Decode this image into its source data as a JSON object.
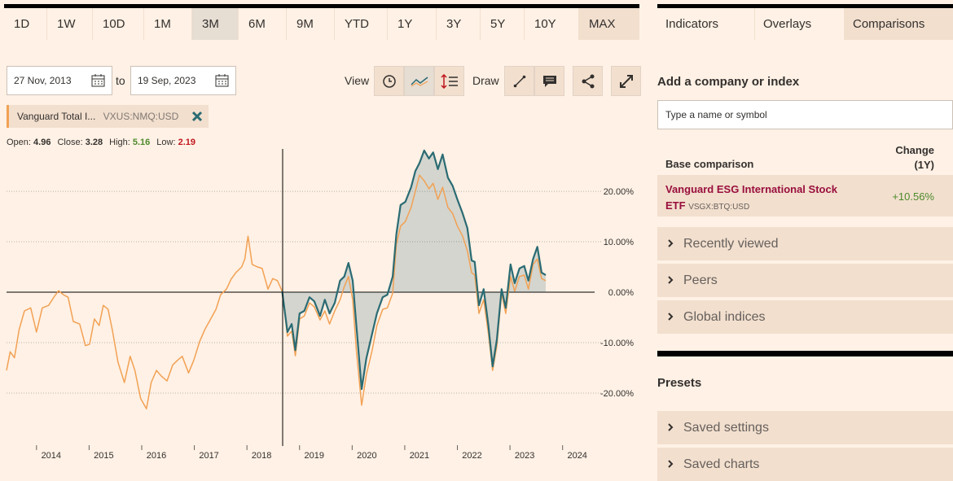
{
  "toolbar": {
    "ranges": [
      {
        "label": "1D"
      },
      {
        "label": "1W"
      },
      {
        "label": "10D"
      },
      {
        "label": "1M"
      },
      {
        "label": "3M",
        "active": true
      },
      {
        "label": "6M"
      },
      {
        "label": "9M"
      },
      {
        "label": "YTD"
      },
      {
        "label": "1Y"
      },
      {
        "label": "3Y"
      },
      {
        "label": "5Y"
      },
      {
        "label": "10Y"
      },
      {
        "label": "MAX"
      }
    ],
    "from": "27 Nov, 2013",
    "to_label": "to",
    "to": "19 Sep, 2023",
    "view_label": "View",
    "draw_label": "Draw"
  },
  "ohlc": [
    {
      "label": "Open:",
      "value": 4.96,
      "color": "#33302e"
    },
    {
      "label": "Close:",
      "value": 3.28,
      "color": "#33302e"
    },
    {
      "label": "High:",
      "value": 5.16,
      "color": "#4d8a2c"
    },
    {
      "label": "Low:",
      "value": 2.19,
      "color": "#c0161e"
    }
  ],
  "chart_data": {
    "type": "line",
    "xlim": [
      2013.43,
      2025.46
    ],
    "xticks": [
      2014,
      2015,
      2016,
      2017,
      2018,
      2019,
      2020,
      2021,
      2022,
      2023,
      2024
    ],
    "ylim": [
      -30,
      28.4
    ],
    "yticks": [
      {
        "value": -20,
        "label": "-20.00%"
      },
      {
        "value": -10,
        "label": "-10.00%"
      },
      {
        "value": 0,
        "label": "0.00%"
      },
      {
        "value": 10,
        "label": "10.00%"
      },
      {
        "value": 20,
        "label": "20.00%"
      }
    ],
    "grid": true,
    "series": [
      {
        "name": "Vanguard Total I...",
        "symbol": "VXUS:NMQ:USD",
        "color": "#f2a154",
        "x": [
          2013.43,
          2013.5,
          2013.58,
          2013.67,
          2013.77,
          2013.89,
          2014.0,
          2014.11,
          2014.23,
          2014.33,
          2014.42,
          2014.51,
          2014.6,
          2014.7,
          2014.82,
          2014.93,
          2015.01,
          2015.1,
          2015.19,
          2015.27,
          2015.36,
          2015.44,
          2015.55,
          2015.67,
          2015.78,
          2015.87,
          2015.98,
          2016.09,
          2016.18,
          2016.28,
          2016.37,
          2016.48,
          2016.59,
          2016.68,
          2016.77,
          2016.89,
          2016.99,
          2017.1,
          2017.2,
          2017.3,
          2017.41,
          2017.5,
          2017.61,
          2017.7,
          2017.79,
          2017.9,
          2017.96,
          2018.02,
          2018.1,
          2018.2,
          2018.29,
          2018.4,
          2018.49,
          2018.58,
          2018.67,
          2018.77,
          2018.85,
          2018.92,
          2019.0,
          2019.09,
          2019.19,
          2019.28,
          2019.39,
          2019.48,
          2019.57,
          2019.67,
          2019.77,
          2019.85,
          2019.93,
          2020.01,
          2020.08,
          2020.18,
          2020.27,
          2020.38,
          2020.47,
          2020.58,
          2020.67,
          2020.77,
          2020.84,
          2020.92,
          2021.01,
          2021.12,
          2021.2,
          2021.28,
          2021.37,
          2021.46,
          2021.54,
          2021.63,
          2021.72,
          2021.82,
          2021.91,
          2022.0,
          2022.1,
          2022.19,
          2022.27,
          2022.33,
          2022.41,
          2022.5,
          2022.59,
          2022.67,
          2022.75,
          2022.84,
          2022.92,
          2023.01,
          2023.09,
          2023.18,
          2023.27,
          2023.35,
          2023.44,
          2023.52,
          2023.6,
          2023.68
        ],
        "values": [
          -15.5,
          -11.8,
          -13,
          -7.4,
          -3.7,
          -3.1,
          -7.9,
          -3.1,
          -2.6,
          -1,
          0.3,
          -0.5,
          -1,
          -5.8,
          -6.3,
          -10.6,
          -10.3,
          -5.3,
          -6.6,
          -2.6,
          -3.4,
          -7.4,
          -13.9,
          -17.9,
          -12.7,
          -15.5,
          -21.1,
          -23.1,
          -17.9,
          -15.5,
          -16.6,
          -17.6,
          -14.4,
          -13.5,
          -12.7,
          -16,
          -13.5,
          -9.8,
          -7.4,
          -5.5,
          -3.4,
          -0.5,
          0.6,
          2.6,
          3.9,
          5,
          6.6,
          11.1,
          5.5,
          5,
          4.7,
          0.6,
          2.7,
          2.3,
          0.2,
          -8.7,
          -7.7,
          -12.6,
          -5.3,
          -4.7,
          -2.1,
          -2.9,
          -5.5,
          -3.7,
          -6.3,
          -3.7,
          -1.5,
          1.1,
          3.1,
          -1.5,
          -11.5,
          -22.4,
          -16.3,
          -11.5,
          -6.6,
          -3.4,
          -3.1,
          -0.2,
          9.5,
          13.1,
          14,
          16.8,
          20,
          23.2,
          22.1,
          20.5,
          21.6,
          18.4,
          20.8,
          16.8,
          15.6,
          13.1,
          11.1,
          8.2,
          3.9,
          3.4,
          -4.2,
          -1.5,
          -8.2,
          -15.5,
          -10.6,
          -0.2,
          -4.2,
          3.1,
          0.2,
          3.1,
          3.4,
          0.6,
          5.5,
          6.6,
          2.7,
          2.3
        ]
      },
      {
        "name": "Vanguard ESG International Stock ETF",
        "symbol": "VSGX:BTQ:USD",
        "color": "#2a6b73",
        "area": true,
        "x": [
          2018.67,
          2018.77,
          2018.85,
          2018.92,
          2019.0,
          2019.09,
          2019.19,
          2019.28,
          2019.39,
          2019.48,
          2019.57,
          2019.67,
          2019.77,
          2019.85,
          2019.93,
          2020.01,
          2020.08,
          2020.18,
          2020.27,
          2020.38,
          2020.47,
          2020.58,
          2020.67,
          2020.77,
          2020.84,
          2020.92,
          2021.01,
          2021.12,
          2021.2,
          2021.28,
          2021.37,
          2021.46,
          2021.54,
          2021.63,
          2021.72,
          2021.82,
          2021.91,
          2022.0,
          2022.1,
          2022.19,
          2022.27,
          2022.33,
          2022.41,
          2022.5,
          2022.59,
          2022.67,
          2022.75,
          2022.84,
          2022.92,
          2023.01,
          2023.09,
          2023.18,
          2023.27,
          2023.35,
          2023.44,
          2023.52,
          2023.6,
          2023.68
        ],
        "values": [
          0.2,
          -7.9,
          -6.3,
          -11.5,
          -4.2,
          -3.7,
          -1,
          -1.8,
          -4.7,
          -1.5,
          -4.2,
          -2.1,
          2.3,
          3.1,
          5.8,
          2.3,
          -6.6,
          -19.2,
          -13.1,
          -8.2,
          -4.2,
          -1,
          -0.5,
          3.1,
          11.5,
          17.3,
          17.9,
          20.8,
          24,
          25.6,
          28.1,
          26.5,
          27.7,
          24.4,
          27.3,
          22.7,
          21.1,
          18.4,
          15.6,
          12.7,
          6.3,
          6,
          -2.6,
          0.6,
          -6.6,
          -14.7,
          -9.4,
          0.6,
          -3.1,
          5.5,
          1.8,
          4.7,
          5.2,
          2.3,
          6.6,
          9,
          3.9,
          3.4
        ]
      }
    ]
  },
  "sidebar": {
    "tabs": [
      {
        "label": "Indicators"
      },
      {
        "label": "Overlays"
      },
      {
        "label": "Comparisons",
        "active": true
      }
    ],
    "add_title": "Add a company or index",
    "search_placeholder": "Type a name or symbol",
    "base_header": "Base comparison",
    "change_header": [
      "Change",
      "(1Y)"
    ],
    "base_change": "+10.56%",
    "accordions": [
      "Recently viewed",
      "Peers",
      "Global indices"
    ],
    "presets_title": "Presets",
    "presets": [
      "Saved settings",
      "Saved charts"
    ]
  }
}
